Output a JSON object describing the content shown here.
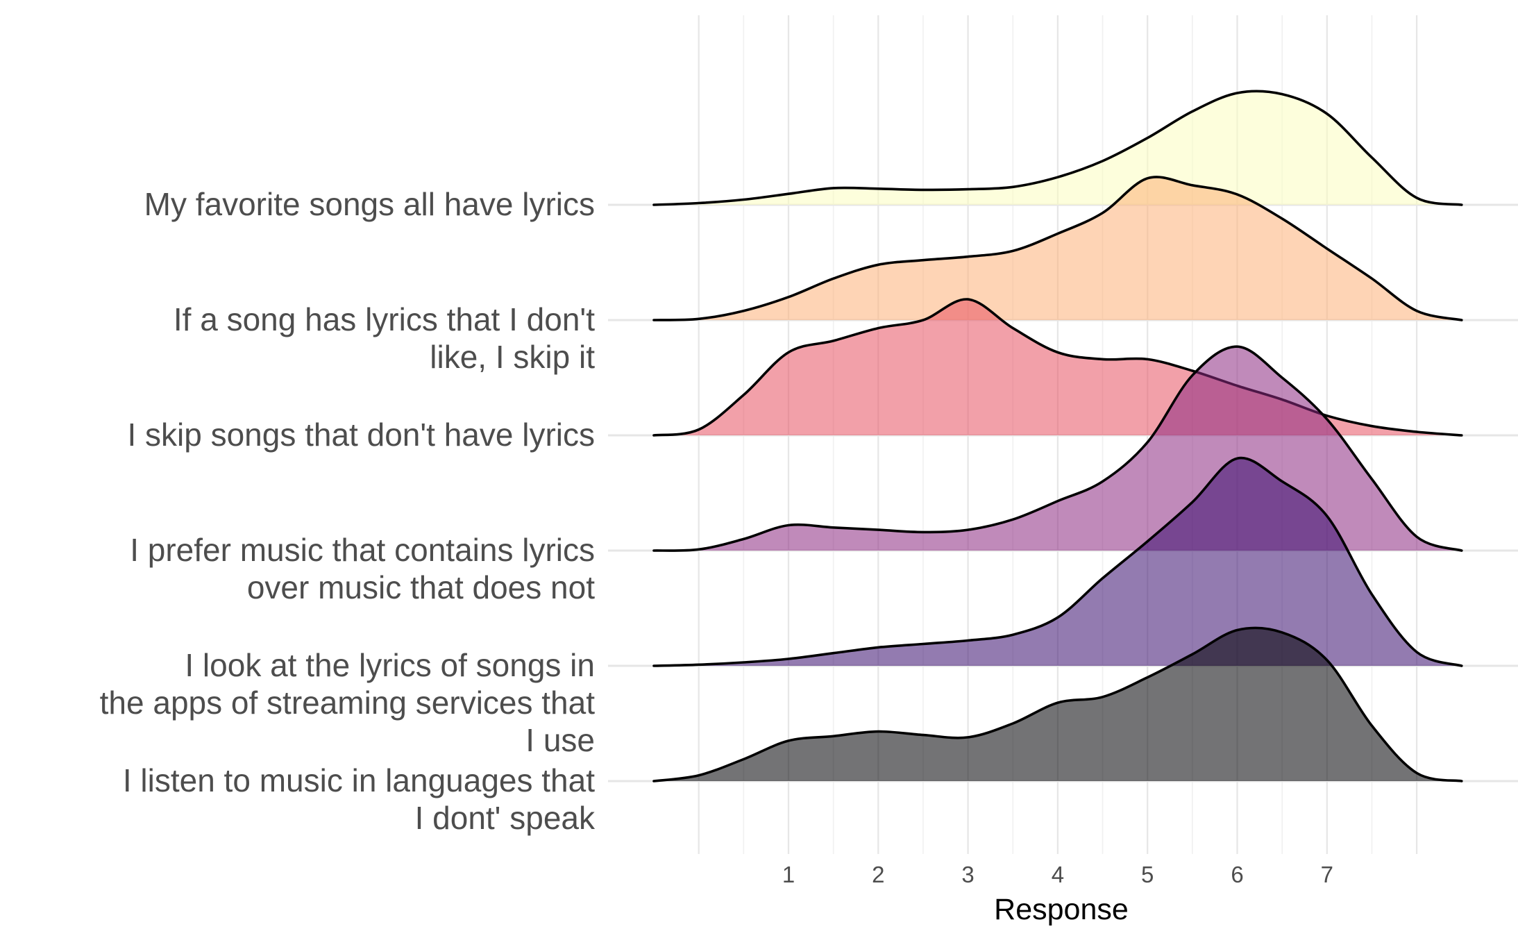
{
  "chart_data": {
    "type": "ridgeline",
    "xlabel": "Response",
    "x_ticks": [
      1,
      2,
      3,
      4,
      5,
      6,
      7
    ],
    "xlim": [
      -0.6,
      8.6
    ],
    "grid": true,
    "legend": "none",
    "series": [
      {
        "name": "My favorite songs all have lyrics",
        "label_lines": [
          "My favorite songs all have lyrics"
        ],
        "color": "#FCFDBF",
        "density": [
          [
            -0.5,
            0.0
          ],
          [
            0.0,
            0.015
          ],
          [
            0.5,
            0.045
          ],
          [
            1.0,
            0.095
          ],
          [
            1.5,
            0.145
          ],
          [
            2.0,
            0.14
          ],
          [
            2.5,
            0.13
          ],
          [
            3.0,
            0.135
          ],
          [
            3.5,
            0.155
          ],
          [
            4.0,
            0.24
          ],
          [
            4.5,
            0.38
          ],
          [
            5.0,
            0.58
          ],
          [
            5.5,
            0.81
          ],
          [
            6.0,
            0.97
          ],
          [
            6.5,
            0.96
          ],
          [
            7.0,
            0.79
          ],
          [
            7.5,
            0.41
          ],
          [
            8.0,
            0.06
          ],
          [
            8.5,
            0.0
          ]
        ]
      },
      {
        "name": "If a song has lyrics that I don't like, I skip it",
        "label_lines": [
          "If a song has lyrics that I don't",
          "like, I skip it"
        ],
        "color": "#FEB078",
        "density": [
          [
            -0.5,
            0.0
          ],
          [
            0.0,
            0.01
          ],
          [
            0.5,
            0.08
          ],
          [
            1.0,
            0.2
          ],
          [
            1.5,
            0.36
          ],
          [
            2.0,
            0.48
          ],
          [
            2.5,
            0.52
          ],
          [
            3.0,
            0.55
          ],
          [
            3.5,
            0.6
          ],
          [
            4.0,
            0.75
          ],
          [
            4.5,
            0.93
          ],
          [
            5.0,
            1.23
          ],
          [
            5.5,
            1.17
          ],
          [
            6.0,
            1.09
          ],
          [
            6.5,
            0.88
          ],
          [
            7.0,
            0.62
          ],
          [
            7.5,
            0.36
          ],
          [
            8.0,
            0.08
          ],
          [
            8.5,
            0.0
          ]
        ]
      },
      {
        "name": "I skip songs that don't have lyrics",
        "label_lines": [
          "I skip songs that don't have lyrics"
        ],
        "color": "#E75263",
        "density": [
          [
            -0.5,
            0.0
          ],
          [
            0.0,
            0.05
          ],
          [
            0.5,
            0.35
          ],
          [
            1.0,
            0.72
          ],
          [
            1.5,
            0.82
          ],
          [
            2.0,
            0.93
          ],
          [
            2.5,
            1.0
          ],
          [
            3.0,
            1.18
          ],
          [
            3.5,
            0.93
          ],
          [
            4.0,
            0.72
          ],
          [
            4.5,
            0.66
          ],
          [
            5.0,
            0.66
          ],
          [
            5.5,
            0.56
          ],
          [
            6.0,
            0.43
          ],
          [
            6.5,
            0.31
          ],
          [
            7.0,
            0.17
          ],
          [
            7.5,
            0.08
          ],
          [
            8.0,
            0.03
          ],
          [
            8.5,
            0.0
          ]
        ]
      },
      {
        "name": "I prefer music that contains lyrics over music that does not",
        "label_lines": [
          "I prefer music that contains lyrics",
          "over music that does not"
        ],
        "color": "#8C2981",
        "density": [
          [
            -0.5,
            0.0
          ],
          [
            0.0,
            0.01
          ],
          [
            0.5,
            0.1
          ],
          [
            1.0,
            0.22
          ],
          [
            1.5,
            0.2
          ],
          [
            2.0,
            0.18
          ],
          [
            2.5,
            0.16
          ],
          [
            3.0,
            0.18
          ],
          [
            3.5,
            0.27
          ],
          [
            4.0,
            0.43
          ],
          [
            4.5,
            0.6
          ],
          [
            5.0,
            0.94
          ],
          [
            5.5,
            1.52
          ],
          [
            6.0,
            1.77
          ],
          [
            6.5,
            1.5
          ],
          [
            7.0,
            1.14
          ],
          [
            7.5,
            0.62
          ],
          [
            8.0,
            0.12
          ],
          [
            8.5,
            0.0
          ]
        ]
      },
      {
        "name": "I look at the lyrics of songs in the apps of streaming services that I use",
        "label_lines": [
          "I look at the lyrics of songs in",
          "the apps of streaming services that",
          "I use"
        ],
        "color": "#3B0F70",
        "density": [
          [
            -0.5,
            0.0
          ],
          [
            0.0,
            0.01
          ],
          [
            0.5,
            0.03
          ],
          [
            1.0,
            0.06
          ],
          [
            1.5,
            0.11
          ],
          [
            2.0,
            0.16
          ],
          [
            2.5,
            0.19
          ],
          [
            3.0,
            0.22
          ],
          [
            3.5,
            0.27
          ],
          [
            4.0,
            0.42
          ],
          [
            4.5,
            0.76
          ],
          [
            5.0,
            1.08
          ],
          [
            5.5,
            1.42
          ],
          [
            6.0,
            1.8
          ],
          [
            6.5,
            1.6
          ],
          [
            7.0,
            1.3
          ],
          [
            7.5,
            0.62
          ],
          [
            8.0,
            0.12
          ],
          [
            8.5,
            0.0
          ]
        ]
      },
      {
        "name": "I listen to music in languages that I dont' speak",
        "label_lines": [
          "I listen to music in languages that",
          "I dont' speak"
        ],
        "color": "#000004",
        "density": [
          [
            -0.5,
            0.0
          ],
          [
            0.0,
            0.05
          ],
          [
            0.5,
            0.19
          ],
          [
            1.0,
            0.35
          ],
          [
            1.5,
            0.39
          ],
          [
            2.0,
            0.43
          ],
          [
            2.5,
            0.4
          ],
          [
            3.0,
            0.38
          ],
          [
            3.5,
            0.5
          ],
          [
            4.0,
            0.68
          ],
          [
            4.5,
            0.73
          ],
          [
            5.0,
            0.9
          ],
          [
            5.5,
            1.1
          ],
          [
            6.0,
            1.31
          ],
          [
            6.5,
            1.29
          ],
          [
            7.0,
            1.05
          ],
          [
            7.5,
            0.48
          ],
          [
            8.0,
            0.07
          ],
          [
            8.5,
            0.0
          ]
        ]
      }
    ]
  }
}
